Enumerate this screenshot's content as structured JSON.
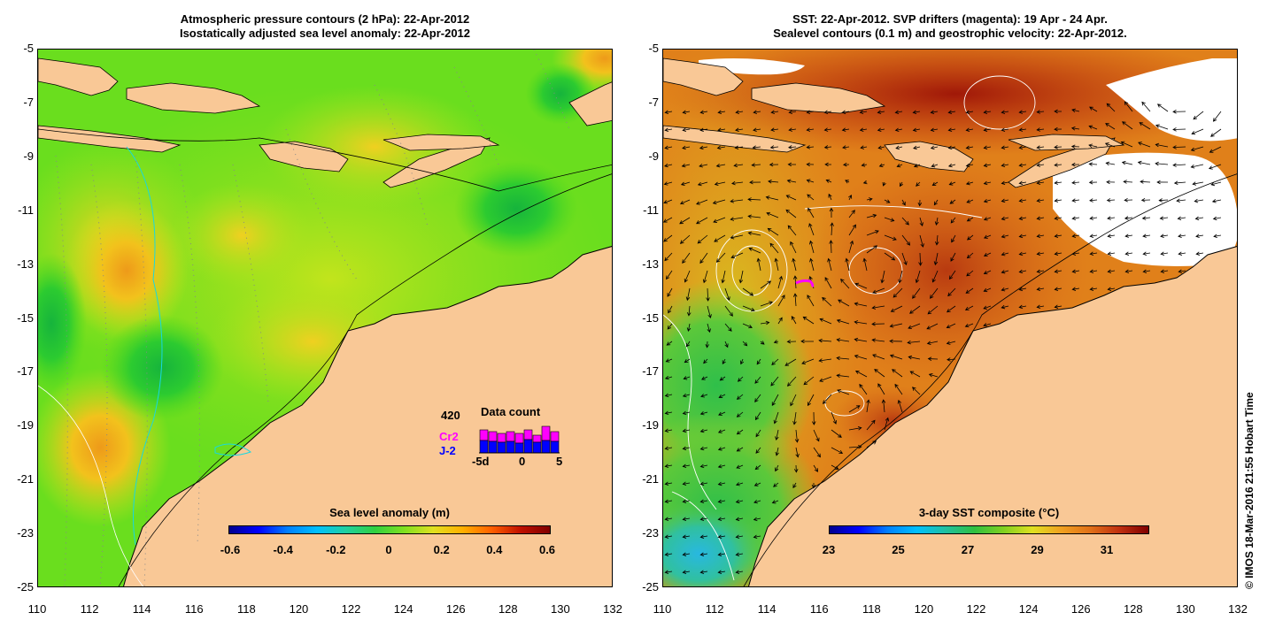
{
  "left_panel": {
    "title_line1": "Atmospheric pressure contours (2 hPa): 22-Apr-2012",
    "title_line2": "Isostatically adjusted sea level anomaly: 22-Apr-2012",
    "colorbar": {
      "title": "Sea level anomaly (m)",
      "labels": [
        "-0.6",
        "-0.4",
        "-0.2",
        "0",
        "0.2",
        "0.4",
        "0.6"
      ]
    },
    "data_count": {
      "title": "Data count",
      "max_label": "420",
      "series": [
        {
          "name": "Cr2",
          "color": "#ff00ff"
        },
        {
          "name": "J-2",
          "color": "#0000ff"
        }
      ],
      "axis_labels": [
        "-5d",
        "0",
        "5"
      ]
    }
  },
  "right_panel": {
    "title_line1": "SST: 22-Apr-2012. SVP drifters (magenta): 19 Apr - 24 Apr.",
    "title_line2": "Sealevel contours (0.1 m) and geostrophic velocity: 22-Apr-2012.",
    "colorbar": {
      "title": "3-day SST composite (°C)",
      "labels": [
        "23",
        "25",
        "27",
        "29",
        "31"
      ]
    }
  },
  "axes": {
    "lat_labels": [
      "-5",
      "-7",
      "-9",
      "-11",
      "-13",
      "-15",
      "-17",
      "-19",
      "-21",
      "-23",
      "-25"
    ],
    "lon_labels": [
      "110",
      "112",
      "114",
      "116",
      "118",
      "120",
      "122",
      "124",
      "126",
      "128",
      "130",
      "132"
    ]
  },
  "credit": "© IMOS 18-Mar-2016 21:55 Hobart Time",
  "colors": {
    "land": "#f9c896",
    "sla_mid": "#3fdc1c",
    "sst_warm": "#e07a18"
  }
}
